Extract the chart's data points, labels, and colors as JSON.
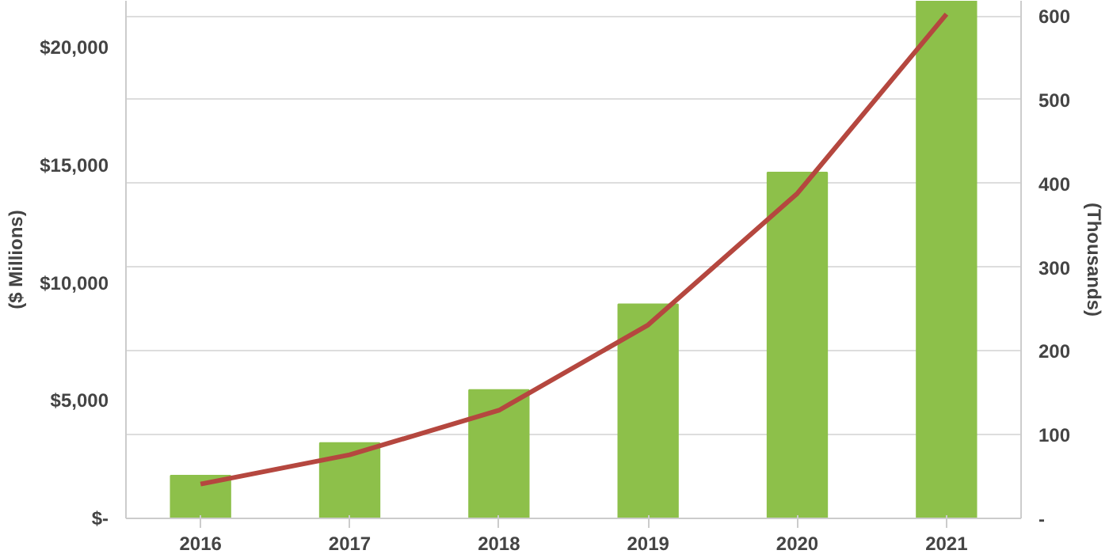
{
  "chart_data": {
    "type": "bar",
    "categories": [
      "2016",
      "2017",
      "2018",
      "2019",
      "2020",
      "2021"
    ],
    "ylabel": "($ Millions)",
    "y2label": "(Thousands)",
    "series": [
      {
        "color": "#8dc04a",
        "values": [
          1820,
          3200,
          5460,
          9100,
          14700,
          22000
        ]
      },
      {
        "type": "line",
        "axis": "y2",
        "color": "#b5473f",
        "values": [
          41,
          76,
          129,
          231,
          388,
          602
        ]
      }
    ],
    "ylim": [
      0,
      22000
    ],
    "yticks": [
      {
        "value": 0,
        "label": "$-"
      },
      {
        "value": 5000,
        "label": "$5,000"
      },
      {
        "value": 10000,
        "label": "$10,000"
      },
      {
        "value": 15000,
        "label": "$15,000"
      },
      {
        "value": 20000,
        "label": "$20,000"
      }
    ],
    "y2lim": [
      0,
      618
    ],
    "y2ticks": [
      {
        "value": 0,
        "label": "-"
      },
      100,
      200,
      300,
      400,
      500,
      600
    ],
    "grid": "y",
    "line_style": "solid",
    "marker": "none"
  }
}
